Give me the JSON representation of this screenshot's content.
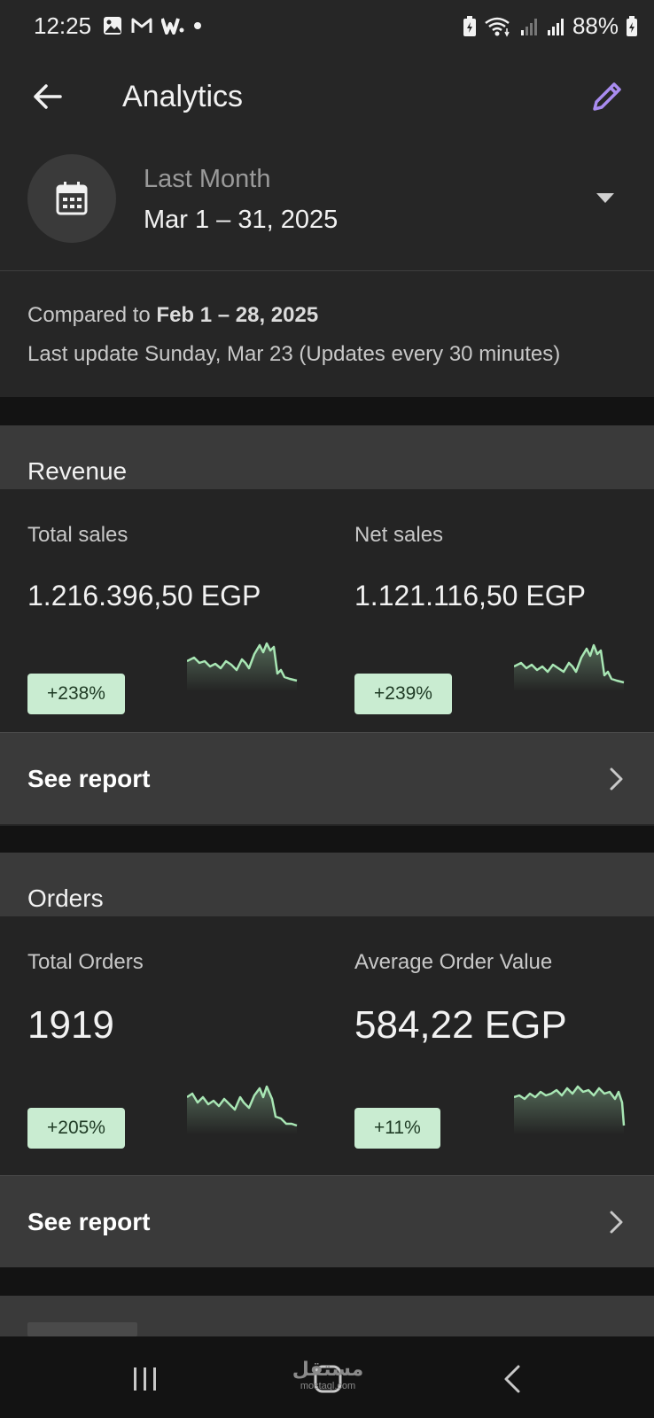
{
  "status_bar": {
    "time": "12:25",
    "battery": "88%",
    "left_icons": [
      "gallery-icon",
      "gmail-icon",
      "w-app-icon",
      "dot-icon"
    ],
    "right_icons": [
      "battery-saver-icon",
      "wifi-icon",
      "signal-icon",
      "signal-icon",
      "battery-icon"
    ]
  },
  "app_bar": {
    "title": "Analytics",
    "back_icon": "arrow-left-icon",
    "edit_icon": "pencil-icon"
  },
  "date_picker": {
    "label": "Last Month",
    "range": "Mar 1 – 31, 2025",
    "icon": "calendar-icon",
    "dropdown_icon": "caret-down-icon"
  },
  "comparison": {
    "prefix": "Compared to ",
    "compare_range": "Feb 1 – 28, 2025",
    "update_text": "Last update Sunday, Mar 23 (Updates every 30 minutes)"
  },
  "revenue": {
    "title": "Revenue",
    "metrics": [
      {
        "label": "Total sales",
        "value": "1.216.396,50 EGP",
        "change": "+238%"
      },
      {
        "label": "Net sales",
        "value": "1.121.116,50 EGP",
        "change": "+239%"
      }
    ],
    "see_report": "See report"
  },
  "orders": {
    "title": "Orders",
    "metrics": [
      {
        "label": "Total Orders",
        "value": "1919",
        "change": "+205%"
      },
      {
        "label": "Average Order Value",
        "value": "584,22 EGP",
        "change": "+11%"
      }
    ],
    "see_report": "See report"
  },
  "watermark": {
    "top": "مستقل",
    "bottom": "mostaql.com"
  },
  "colors": {
    "accent": "#a98cf0",
    "spark_line": "#a8e6b4",
    "badge_bg": "#c9ecd1",
    "card_bg": "#242424",
    "header_bg": "#3a3a3a"
  },
  "nav_bar": {
    "recents_icon": "recents-icon",
    "home_icon": "home-icon",
    "back_icon": "back-chevron-icon"
  }
}
